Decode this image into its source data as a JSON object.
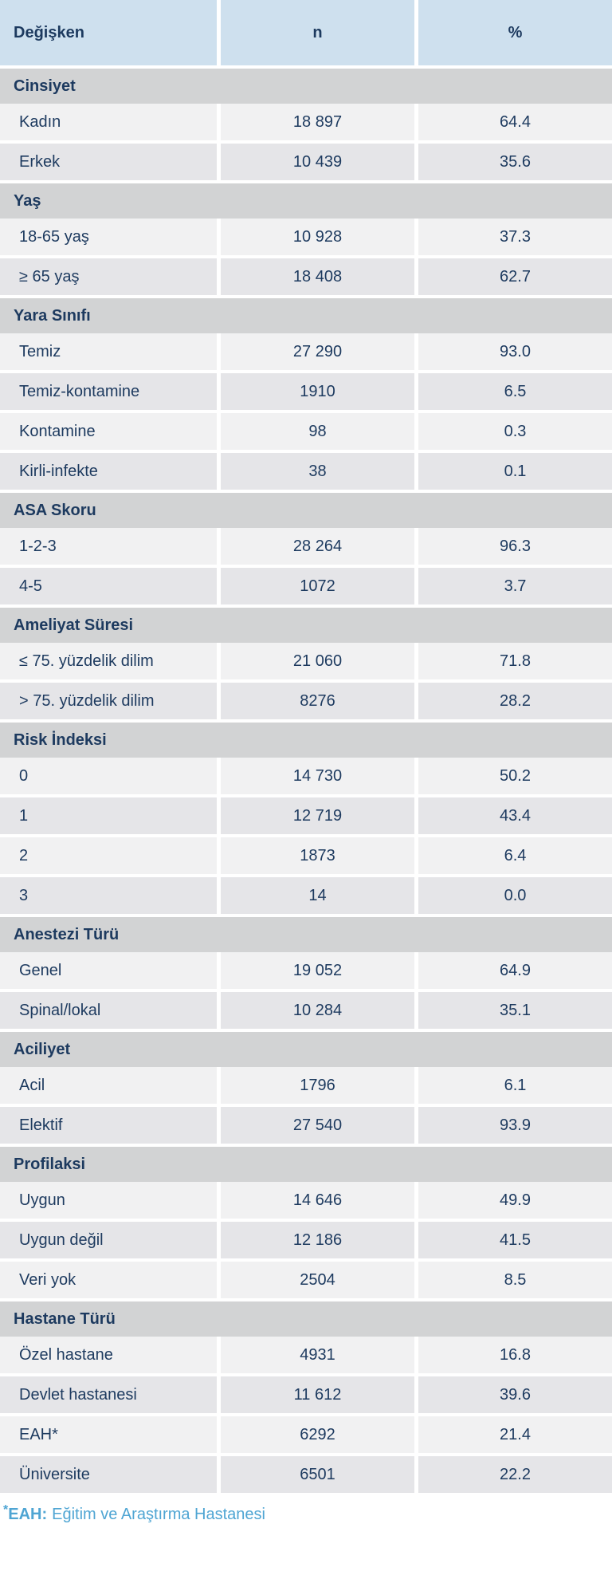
{
  "table": {
    "columns": [
      "Değişken",
      "n",
      "%"
    ],
    "sections": [
      {
        "label": "Cinsiyet",
        "rows": [
          [
            "Kadın",
            "18 897",
            "64.4"
          ],
          [
            "Erkek",
            "10 439",
            "35.6"
          ]
        ]
      },
      {
        "label": "Yaş",
        "rows": [
          [
            "18-65 yaş",
            "10 928",
            "37.3"
          ],
          [
            "≥ 65 yaş",
            "18 408",
            "62.7"
          ]
        ]
      },
      {
        "label": "Yara Sınıfı",
        "rows": [
          [
            "Temiz",
            "27 290",
            "93.0"
          ],
          [
            "Temiz-kontamine",
            "1910",
            "6.5"
          ],
          [
            "Kontamine",
            "98",
            "0.3"
          ],
          [
            "Kirli-infekte",
            "38",
            "0.1"
          ]
        ]
      },
      {
        "label": "ASA Skoru",
        "rows": [
          [
            "1-2-3",
            "28 264",
            "96.3"
          ],
          [
            "4-5",
            "1072",
            "3.7"
          ]
        ]
      },
      {
        "label": "Ameliyat Süresi",
        "rows": [
          [
            "≤ 75. yüzdelik dilim",
            "21 060",
            "71.8"
          ],
          [
            "> 75. yüzdelik dilim",
            "8276",
            "28.2"
          ]
        ]
      },
      {
        "label": "Risk İndeksi",
        "rows": [
          [
            "0",
            "14 730",
            "50.2"
          ],
          [
            "1",
            "12 719",
            "43.4"
          ],
          [
            "2",
            "1873",
            "6.4"
          ],
          [
            "3",
            "14",
            "0.0"
          ]
        ]
      },
      {
        "label": "Anestezi Türü",
        "rows": [
          [
            "Genel",
            "19 052",
            "64.9"
          ],
          [
            "Spinal/lokal",
            "10 284",
            "35.1"
          ]
        ]
      },
      {
        "label": "Aciliyet",
        "rows": [
          [
            "Acil",
            "1796",
            "6.1"
          ],
          [
            "Elektif",
            "27 540",
            "93.9"
          ]
        ]
      },
      {
        "label": "Profilaksi",
        "rows": [
          [
            "Uygun",
            "14 646",
            "49.9"
          ],
          [
            "Uygun değil",
            "12 186",
            "41.5"
          ],
          [
            "Veri yok",
            "2504",
            "8.5"
          ]
        ]
      },
      {
        "label": "Hastane Türü",
        "rows": [
          [
            "Özel hastane",
            "4931",
            "16.8"
          ],
          [
            "Devlet hastanesi",
            "11 612",
            "39.6"
          ],
          [
            "EAH*",
            "6292",
            "21.4"
          ],
          [
            "Üniversite",
            "6501",
            "22.2"
          ]
        ]
      }
    ]
  },
  "footnote": {
    "marker": "*",
    "bold": "EAH:",
    "text": "Eğitim ve Araştırma Hastanesi"
  },
  "colors": {
    "header_bg": "#CEE0EE",
    "section_bg": "#D2D3D4",
    "row_light": "#F1F1F2",
    "row_dark": "#E5E5E8",
    "text_navy": "#1D3A5F",
    "footnote_blue": "#4FA5D3"
  }
}
